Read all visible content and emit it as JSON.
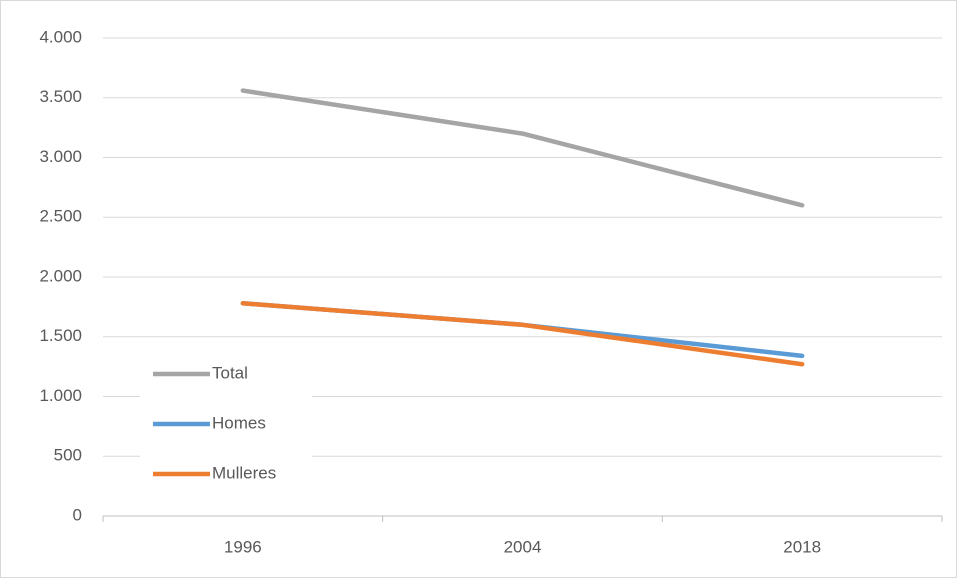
{
  "chart_data": {
    "type": "line",
    "categories": [
      "1996",
      "2004",
      "2018"
    ],
    "series": [
      {
        "name": "Total",
        "color": "#a5a5a5",
        "values": [
          3560,
          3200,
          2600
        ]
      },
      {
        "name": "Homes",
        "color": "#5b9bd5",
        "values": [
          1780,
          1600,
          1340
        ]
      },
      {
        "name": "Mulleres",
        "color": "#ed7d31",
        "values": [
          1780,
          1600,
          1270
        ]
      }
    ],
    "ylim": [
      0,
      4000
    ],
    "yticks": [
      0,
      500,
      {
        "value": 1000,
        "label": "1.000"
      },
      {
        "value": 1500,
        "label": "1.500"
      },
      {
        "value": 2000,
        "label": "2.000"
      },
      {
        "value": 2500,
        "label": "2.500"
      },
      {
        "value": 3000,
        "label": "3.000"
      },
      {
        "value": 3500,
        "label": "3.500"
      },
      {
        "value": 4000,
        "label": "4.000"
      }
    ],
    "grid": true,
    "legend": "lower left"
  }
}
